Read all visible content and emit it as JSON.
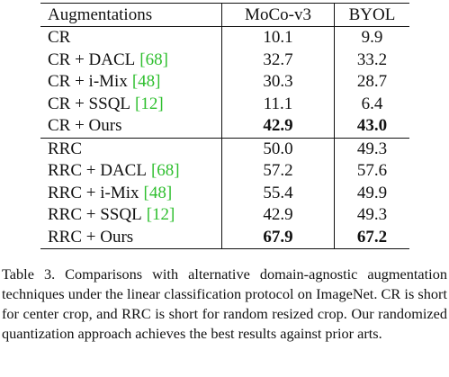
{
  "table": {
    "header": [
      "Augmentations",
      "MoCo-v3",
      "BYOL"
    ],
    "groups": [
      {
        "rows": [
          {
            "method": "CR",
            "values": [
              "10.1",
              "9.9"
            ]
          },
          {
            "method": "CR + DACL",
            "cite": "[68]",
            "values": [
              "32.7",
              "33.2"
            ]
          },
          {
            "method": "CR + i-Mix",
            "cite": "[48]",
            "values": [
              "30.3",
              "28.7"
            ]
          },
          {
            "method": "CR + SSQL",
            "cite": "[12]",
            "values": [
              "11.1",
              "6.4"
            ]
          },
          {
            "method": "CR + Ours",
            "values": [
              "42.9",
              "43.0"
            ],
            "bold": true
          }
        ]
      },
      {
        "rows": [
          {
            "method": "RRC",
            "values": [
              "50.0",
              "49.3"
            ]
          },
          {
            "method": "RRC + DACL",
            "cite": "[68]",
            "values": [
              "57.2",
              "57.6"
            ]
          },
          {
            "method": "RRC + i-Mix",
            "cite": "[48]",
            "values": [
              "55.4",
              "49.9"
            ]
          },
          {
            "method": "RRC + SSQL",
            "cite": "[12]",
            "values": [
              "42.9",
              "49.3"
            ]
          },
          {
            "method": "RRC + Ours",
            "values": [
              "67.9",
              "67.2"
            ],
            "bold": true
          }
        ]
      }
    ]
  },
  "caption": "Table 3. Comparisons with alternative domain-agnostic augmentation techniques under the linear classification protocol on ImageNet. CR is short for center crop, and RRC is short for random resized crop. Our randomized quantization approach achieves the best results against prior arts."
}
